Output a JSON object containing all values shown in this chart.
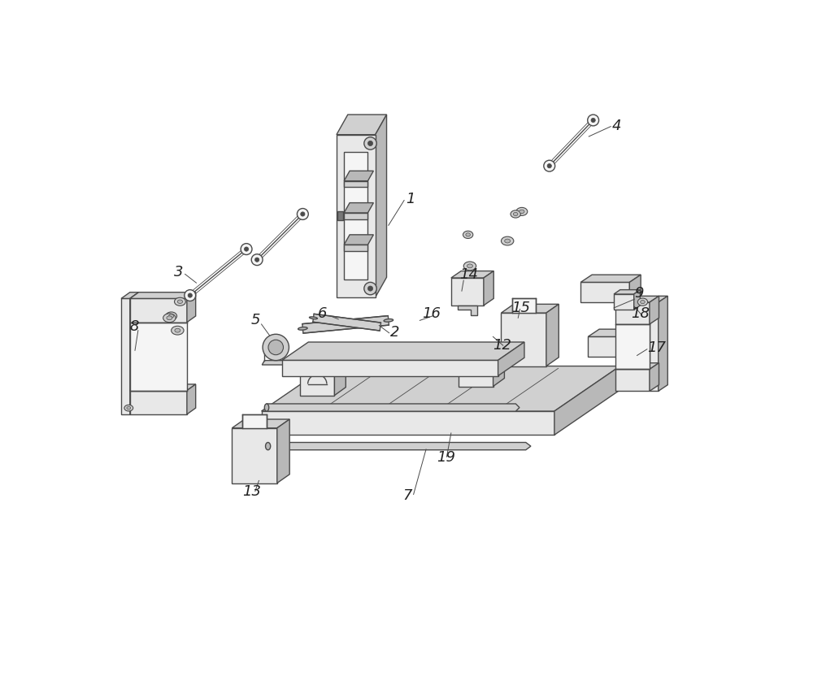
{
  "bg_color": "#ffffff",
  "line_color": "#4a4a4a",
  "lw": 1.0,
  "fig_width": 10.0,
  "fig_height": 8.48,
  "face_light": "#e8e8e8",
  "face_mid": "#d0d0d0",
  "face_dark": "#b8b8b8",
  "face_white": "#f5f5f5"
}
